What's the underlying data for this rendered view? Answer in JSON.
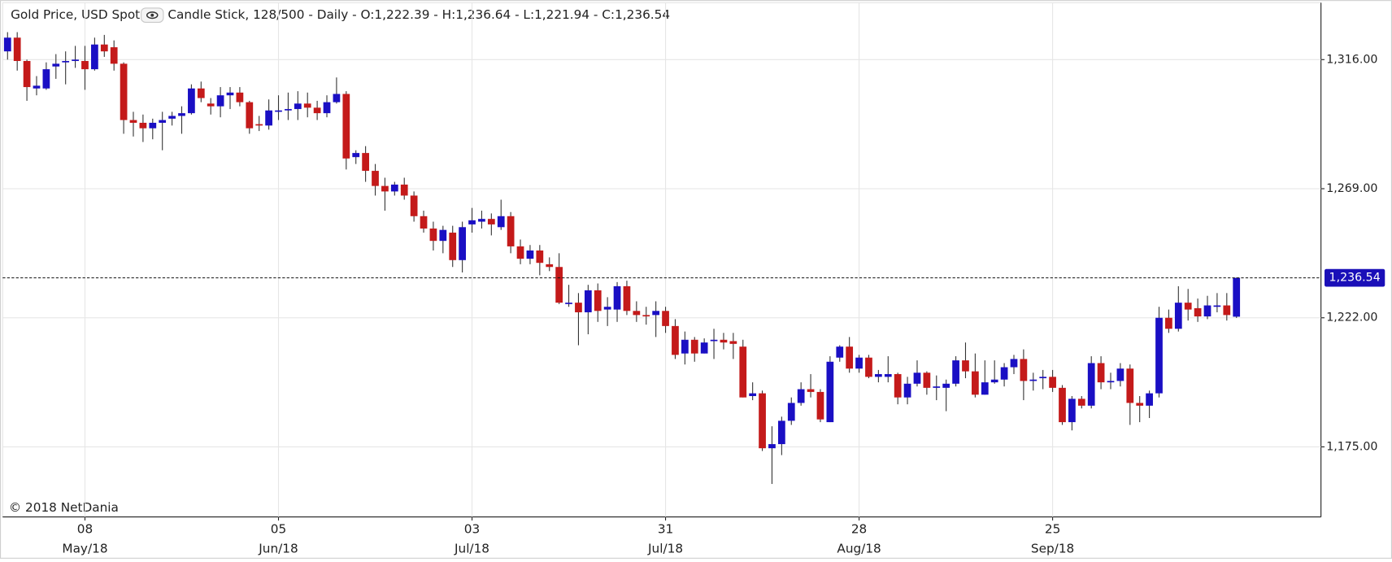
{
  "chart_data": {
    "type": "candlestick",
    "title": "Gold Price, USD Spot",
    "subtitle": "Candle Stick, 128/500 - Daily - O:1,222.39 - H:1,236.64 - L:1,221.94 - C:1,236.54",
    "copyright": "© 2018 NetDania",
    "categories": [
      null,
      null,
      null,
      null,
      null,
      null,
      null,
      null,
      "08",
      null,
      null,
      null,
      null,
      null,
      null,
      null,
      null,
      null,
      null,
      null,
      null,
      null,
      null,
      null,
      null,
      null,
      null,
      null,
      "05",
      null,
      null,
      null,
      null,
      null,
      null,
      null,
      null,
      null,
      null,
      null,
      null,
      null,
      null,
      null,
      null,
      null,
      null,
      null,
      "03",
      null,
      null,
      null,
      null,
      null,
      null,
      null,
      null,
      null,
      null,
      null,
      null,
      null,
      null,
      null,
      null,
      null,
      null,
      null,
      "31",
      null,
      null,
      null,
      null,
      null,
      null,
      null,
      null,
      null,
      null,
      null,
      null,
      null,
      null,
      null,
      null,
      null,
      null,
      null,
      "28",
      null,
      null,
      null,
      null,
      null,
      null,
      null,
      null,
      null,
      null,
      null,
      null,
      null,
      null,
      null,
      null,
      null,
      null,
      null,
      "25",
      null,
      null,
      null,
      null,
      null,
      null,
      null,
      null,
      null,
      null,
      null,
      null,
      null,
      null,
      null,
      null,
      null,
      null,
      null
    ],
    "category_months": [
      null,
      null,
      null,
      null,
      null,
      null,
      null,
      null,
      "May/18",
      null,
      null,
      null,
      null,
      null,
      null,
      null,
      null,
      null,
      null,
      null,
      null,
      null,
      null,
      null,
      null,
      null,
      null,
      null,
      "Jun/18",
      null,
      null,
      null,
      null,
      null,
      null,
      null,
      null,
      null,
      null,
      null,
      null,
      null,
      null,
      null,
      null,
      null,
      null,
      null,
      "Jul/18",
      null,
      null,
      null,
      null,
      null,
      null,
      null,
      null,
      null,
      null,
      null,
      null,
      null,
      null,
      null,
      null,
      null,
      null,
      null,
      "Jul/18",
      null,
      null,
      null,
      null,
      null,
      null,
      null,
      null,
      null,
      null,
      null,
      null,
      null,
      null,
      null,
      null,
      null,
      null,
      null,
      "Aug/18",
      null,
      null,
      null,
      null,
      null,
      null,
      null,
      null,
      null,
      null,
      null,
      null,
      null,
      null,
      null,
      null,
      null,
      null,
      null,
      "Sep/18",
      null,
      null,
      null,
      null,
      null,
      null,
      null,
      null,
      null,
      null,
      null,
      null,
      null,
      null,
      null,
      null,
      null,
      null,
      null
    ],
    "open": [
      1319,
      1324,
      1315.5,
      1305.5,
      1305.5,
      1313.5,
      1315,
      1315.5,
      1315.5,
      1312.5,
      1321.5,
      1320.5,
      1314.5,
      1294,
      1293,
      1291,
      1293,
      1294.5,
      1295.5,
      1296.5,
      1305.5,
      1300,
      1299,
      1303,
      1304,
      1300.5,
      1292.5,
      1292,
      1297,
      1297.5,
      1298,
      1300,
      1298.5,
      1296.5,
      1300.5,
      1303.5,
      1280.5,
      1282,
      1275.5,
      1270,
      1268,
      1270.5,
      1266.5,
      1259,
      1254.5,
      1250,
      1253,
      1243,
      1256,
      1257,
      1258,
      1255,
      1259,
      1248,
      1243.5,
      1246.5,
      1241.5,
      1240.5,
      1227,
      1227.5,
      1224,
      1232,
      1225,
      1225,
      1233.5,
      1224.5,
      1223,
      1223,
      1224.5,
      1219,
      1209,
      1214,
      1209,
      1213.5,
      1214,
      1213.5,
      1211.5,
      1193.5,
      1194.5,
      1174.5,
      1176,
      1184.5,
      1191,
      1196,
      1195,
      1184,
      1207.5,
      1211.5,
      1203.5,
      1207.5,
      1200.5,
      1200.5,
      1201.5,
      1193,
      1198,
      1202,
      1196.5,
      1196.5,
      1198,
      1206.5,
      1202.5,
      1194,
      1198.5,
      1199.5,
      1204,
      1207,
      1199,
      1200,
      1200.5,
      1196.5,
      1184,
      1192.5,
      1190,
      1205.5,
      1198.5,
      1199,
      1203.5,
      1191,
      1190,
      1194.5,
      1222,
      1218,
      1227.5,
      1225.5,
      1222.5,
      1226,
      1226.5,
      1222.39
    ],
    "high": [
      1326,
      1326,
      1316,
      1310,
      1315,
      1318,
      1319,
      1321,
      1321,
      1324,
      1325,
      1323,
      1315,
      1297,
      1296,
      1294.5,
      1297,
      1297,
      1299,
      1307,
      1308,
      1302,
      1306,
      1306,
      1306,
      1301,
      1295.5,
      1301.5,
      1303,
      1304,
      1304.5,
      1304,
      1301,
      1303,
      1309.5,
      1304.5,
      1283,
      1284.5,
      1278,
      1273,
      1271.5,
      1273,
      1268,
      1261,
      1257,
      1255.5,
      1255.5,
      1257,
      1262,
      1261,
      1260,
      1265,
      1260.5,
      1250.5,
      1248.5,
      1248.5,
      1244,
      1245.5,
      1234,
      1231,
      1234,
      1234.5,
      1229.5,
      1235,
      1235.5,
      1228,
      1226,
      1228,
      1226,
      1221.5,
      1217,
      1215,
      1214.5,
      1218,
      1216.5,
      1216.5,
      1214,
      1198.5,
      1195.5,
      1182.5,
      1186,
      1193,
      1198.5,
      1201.5,
      1196,
      1208,
      1212,
      1215,
      1208.5,
      1208.5,
      1203,
      1208,
      1202,
      1200.5,
      1206.5,
      1202.5,
      1201,
      1199.5,
      1208,
      1213,
      1209,
      1206.5,
      1206.5,
      1205.5,
      1208.5,
      1210.5,
      1202,
      1203,
      1203,
      1197.5,
      1193.5,
      1193.5,
      1208,
      1208,
      1202,
      1205.5,
      1205,
      1193.5,
      1195.5,
      1226,
      1225,
      1233.5,
      1232.5,
      1229,
      1230,
      1231,
      1231,
      1236.64
    ],
    "low": [
      1316,
      1312,
      1301,
      1303,
      1305,
      1309,
      1307,
      1313,
      1305,
      1312,
      1317,
      1312,
      1289,
      1288,
      1286,
      1287,
      1283,
      1292,
      1289,
      1296,
      1300.5,
      1296,
      1295,
      1298,
      1299,
      1289,
      1290,
      1290.5,
      1294,
      1294,
      1294,
      1295,
      1294,
      1295,
      1300,
      1276,
      1278,
      1271.5,
      1266.5,
      1261,
      1266.5,
      1265,
      1257,
      1253,
      1246.5,
      1245.5,
      1240.5,
      1238.5,
      1253,
      1254.5,
      1252,
      1254,
      1245.5,
      1241.5,
      1241.5,
      1237.5,
      1239,
      1227,
      1226,
      1212,
      1216,
      1220.5,
      1219,
      1220.5,
      1223,
      1220.5,
      1219.5,
      1215,
      1216.5,
      1207,
      1205,
      1206,
      1209,
      1207,
      1210.5,
      1207,
      1193,
      1192,
      1173.5,
      1161.5,
      1172,
      1183,
      1190,
      1193,
      1184,
      1184,
      1206,
      1202,
      1202,
      1200,
      1198.5,
      1198.5,
      1190.5,
      1190.5,
      1197,
      1194,
      1192,
      1188,
      1197,
      1200,
      1193,
      1194,
      1198,
      1197,
      1201.5,
      1192,
      1195.5,
      1196,
      1195,
      1183,
      1181,
      1189,
      1189,
      1196,
      1196,
      1197,
      1183,
      1184,
      1185.5,
      1193,
      1216.5,
      1217,
      1221,
      1220.5,
      1221.5,
      1224,
      1221,
      1221.94
    ],
    "close": [
      1324,
      1315.5,
      1306,
      1306.5,
      1312.5,
      1314.5,
      1315.5,
      1316,
      1312.5,
      1321.5,
      1319,
      1314.5,
      1294,
      1293,
      1291,
      1293,
      1294,
      1295.5,
      1296.5,
      1305.5,
      1302,
      1299,
      1303,
      1304,
      1300.5,
      1291,
      1292,
      1297.5,
      1297.5,
      1298,
      1300,
      1298.5,
      1296.5,
      1300.5,
      1303.5,
      1280,
      1282,
      1275.5,
      1270,
      1268,
      1270.5,
      1266.5,
      1259,
      1254.5,
      1250,
      1254,
      1243,
      1255,
      1257.5,
      1258,
      1256,
      1259,
      1248,
      1243.5,
      1246.5,
      1242,
      1240.5,
      1227.5,
      1227.5,
      1224,
      1232,
      1224.5,
      1226,
      1233.5,
      1224.5,
      1223,
      1222.5,
      1224.5,
      1219,
      1208.5,
      1214,
      1209,
      1213,
      1214,
      1213,
      1212.5,
      1193,
      1194.5,
      1174.5,
      1176,
      1184.5,
      1191,
      1196,
      1195,
      1185,
      1206,
      1211.5,
      1203.5,
      1207.5,
      1200.5,
      1201.5,
      1201.5,
      1193,
      1198,
      1202,
      1196.5,
      1197,
      1198,
      1206.5,
      1202.5,
      1194,
      1198.5,
      1199.5,
      1204,
      1207,
      1199,
      1199.5,
      1200.5,
      1196.5,
      1184,
      1192.5,
      1190,
      1205.5,
      1198.5,
      1199,
      1203.5,
      1191,
      1190,
      1194.5,
      1222,
      1218,
      1227.5,
      1225,
      1222.5,
      1226.5,
      1226.5,
      1223,
      1236.54
    ],
    "up_color": "#1a0fc4",
    "down_color": "#c41a1a",
    "wick_color": "#333333",
    "ylim": [
      1149.5,
      1336.7
    ],
    "yticks": [
      {
        "value": 1175,
        "label": "1,175.00"
      },
      {
        "value": 1222,
        "label": "1,222.00"
      },
      {
        "value": 1269,
        "label": "1,269.00"
      },
      {
        "value": 1316,
        "label": "1,316.00"
      }
    ],
    "last": {
      "value": 1236.54,
      "label": "1,236.54"
    },
    "last_color": "#1a0fb8",
    "grid": true
  }
}
